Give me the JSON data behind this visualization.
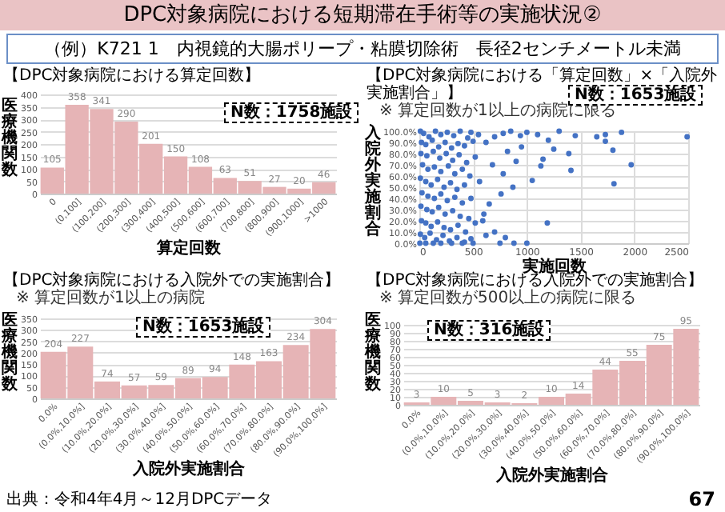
{
  "chart_data": [
    {
      "type": "other",
      "title": "DPC対象病院における短期滞在手術等の実施状況②",
      "subtitle": "（例）K721 1　内視鏡的大腸ポリープ・粘膜切除術　長径2センチメートル未満",
      "annotations": [
        "出典：令和4年4月～12月DPCデータ",
        "67"
      ]
    },
    {
      "type": "bar",
      "title": "【DPC対象病院における算定回数】",
      "annotations": [
        "N数：1758施設"
      ],
      "categories": [
        "0",
        "(0,100]",
        "(100,200]",
        "(200,300]",
        "(300,400]",
        "(400,500]",
        "(500,600]",
        "(600,700]",
        "(700,800]",
        "(800,900]",
        "(900,1000]",
        ">1000"
      ],
      "values": [
        105,
        358,
        341,
        290,
        201,
        150,
        108,
        63,
        51,
        27,
        20,
        46
      ],
      "color": "#e6b4b6",
      "ylim": [
        0,
        400
      ],
      "yticks": [
        0,
        50,
        100,
        150,
        200,
        250,
        300,
        350,
        400
      ],
      "xlabel": "算定回数",
      "ylabel": "医療機関数",
      "grid": "y",
      "data_labels": true
    },
    {
      "type": "scatter",
      "title": "【DPC対象病院における「算定回数」×「入院外実施割合」】",
      "subtitle": "※ 算定回数が1以上の病院に限る",
      "annotations": [
        "N数：1653施設"
      ],
      "x": [
        10,
        40,
        90,
        150,
        200,
        260,
        320,
        380,
        450,
        480,
        20,
        60,
        120,
        180,
        240,
        300,
        360,
        420,
        500,
        15,
        70,
        130,
        190,
        250,
        310,
        370,
        440,
        520,
        30,
        80,
        140,
        200,
        270,
        330,
        400,
        470,
        10,
        60,
        110,
        170,
        230,
        290,
        350,
        420,
        560,
        25,
        80,
        140,
        200,
        260,
        330,
        400,
        480,
        15,
        70,
        120,
        180,
        240,
        310,
        380,
        460,
        20,
        60,
        110,
        170,
        230,
        290,
        360,
        430,
        520,
        10,
        50,
        100,
        160,
        220,
        280,
        350,
        420,
        480,
        5,
        60,
        130,
        200,
        300,
        400,
        500,
        550,
        620,
        700,
        780,
        850,
        940,
        1000,
        1100,
        1200,
        1300,
        1450,
        1650,
        1730,
        1730,
        1880,
        2490,
        1800,
        1390,
        1250,
        1150,
        950,
        820,
        680,
        780,
        900,
        1130,
        1410,
        1970,
        1050,
        870,
        760,
        1810,
        650,
        600,
        590,
        1190,
        700,
        800,
        620,
        750,
        1000,
        880
      ],
      "values": [
        100,
        98,
        95,
        100,
        97,
        99,
        96,
        100,
        94,
        99,
        90,
        88,
        92,
        86,
        90,
        85,
        89,
        87,
        91,
        80,
        78,
        82,
        76,
        80,
        74,
        79,
        72,
        77,
        70,
        66,
        68,
        64,
        69,
        62,
        66,
        60,
        58,
        55,
        52,
        57,
        50,
        54,
        48,
        52,
        55,
        45,
        42,
        40,
        44,
        38,
        41,
        36,
        40,
        33,
        30,
        28,
        32,
        26,
        29,
        24,
        22,
        20,
        18,
        15,
        19,
        14,
        12,
        16,
        10,
        18,
        8,
        5,
        9,
        3,
        7,
        2,
        5,
        1,
        4,
        0,
        0,
        0,
        0,
        0,
        0,
        0,
        97,
        90,
        95,
        98,
        100,
        96,
        99,
        97,
        92,
        100,
        96,
        95,
        97,
        91,
        99,
        95,
        83,
        80,
        84,
        75,
        86,
        82,
        70,
        62,
        73,
        69,
        65,
        70,
        56,
        50,
        44,
        53,
        35,
        26,
        20,
        18,
        10,
        5,
        7,
        0,
        0,
        0
      ],
      "color": "#4472c4",
      "marker": "circle",
      "xlim": [
        0,
        2500
      ],
      "xticks": [
        0,
        500,
        1000,
        1500,
        2000,
        2500
      ],
      "ylim": [
        0,
        100
      ],
      "yticks": [
        {
          "value": 0,
          "label": "0.0%"
        },
        {
          "value": 10,
          "label": "10.0%"
        },
        {
          "value": 20,
          "label": "20.0%"
        },
        {
          "value": 30,
          "label": "30.0%"
        },
        {
          "value": 40,
          "label": "40.0%"
        },
        {
          "value": 50,
          "label": "50.0%"
        },
        {
          "value": 60,
          "label": "60.0%"
        },
        {
          "value": 70,
          "label": "70.0%"
        },
        {
          "value": 80,
          "label": "80.0%"
        },
        {
          "value": 90,
          "label": "90.0%"
        },
        {
          "value": 100,
          "label": "100.0%"
        }
      ],
      "xlabel": "実施回数",
      "ylabel": "入院外実施割合",
      "grid": true
    },
    {
      "type": "bar",
      "title": "【DPC対象病院における入院外での実施割合】",
      "subtitle": "※ 算定回数が1以上の病院",
      "annotations": [
        "N数：1653施設"
      ],
      "categories": [
        "0.0%",
        "(0.0%,10.0%]",
        "(10.0%,20.0%]",
        "(20.0%,30.0%]",
        "(30.0%,40.0%]",
        "(40.0%,50.0%]",
        "(50.0%,60.0%]",
        "(60.0%,70.0%]",
        "(70.0%,80.0%]",
        "(80.0%,90.0%]",
        "(90.0%,100.0%]"
      ],
      "values": [
        204,
        227,
        74,
        57,
        59,
        89,
        94,
        148,
        163,
        234,
        304
      ],
      "color": "#e6b4b6",
      "ylim": [
        0,
        350
      ],
      "yticks": [
        0,
        50,
        100,
        150,
        200,
        250,
        300,
        350
      ],
      "xlabel": "入院外実施割合",
      "ylabel": "医療機関数",
      "grid": "y",
      "data_labels": true
    },
    {
      "type": "bar",
      "title": "【DPC対象病院における入院外での実施割合】",
      "subtitle": "※ 算定回数が500以上の病院に限る",
      "annotations": [
        "N数：316施設"
      ],
      "categories": [
        "0.0%",
        "(0.0%,10.0%]",
        "(10.0%,20.0%]",
        "(20.0%,30.0%]",
        "(30.0%,40.0%]",
        "(40.0%,50.0%]",
        "(50.0%,60.0%]",
        "(60.0%,70.0%]",
        "(70.0%,80.0%]",
        "(80.0%,90.0%]",
        "(90.0%,100.0%]"
      ],
      "values": [
        3,
        10,
        5,
        3,
        2,
        10,
        14,
        44,
        55,
        75,
        95
      ],
      "color": "#e6b4b6",
      "ylim": [
        0,
        100
      ],
      "yticks": [
        0,
        10,
        20,
        30,
        40,
        50,
        60,
        70,
        80,
        90,
        100
      ],
      "xlabel": "入院外実施割合",
      "ylabel": "医療機関数",
      "grid": "y",
      "data_labels": true
    }
  ]
}
